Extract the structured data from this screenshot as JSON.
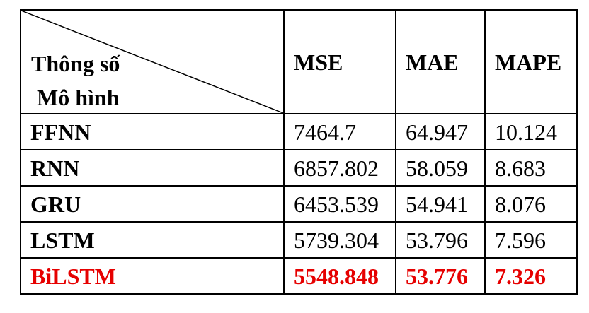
{
  "table": {
    "corner": {
      "top_label": "Thông số",
      "bottom_label": "Mô hình"
    },
    "columns": [
      "MSE",
      "MAE",
      "MAPE"
    ],
    "rows": [
      {
        "model": "FFNN",
        "mse": "7464.7",
        "mae": "64.947",
        "mape": "10.124"
      },
      {
        "model": "RNN",
        "mse": "6857.802",
        "mae": "58.059",
        "mape": "8.683"
      },
      {
        "model": "GRU",
        "mse": "6453.539",
        "mae": "54.941",
        "mape": "8.076"
      },
      {
        "model": "LSTM",
        "mse": "5739.304",
        "mae": "53.796",
        "mape": "7.596"
      },
      {
        "model": "BiLSTM",
        "mse": "5548.848",
        "mae": "53.776",
        "mape": "7.326"
      }
    ],
    "highlight_color": "#e60000"
  }
}
